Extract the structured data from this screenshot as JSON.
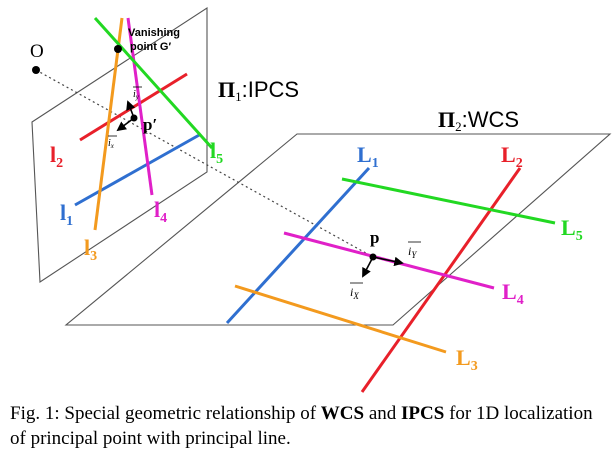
{
  "figure": {
    "plane1_label": "Π",
    "plane1_sub": "1",
    "plane1_name": ":IPCS",
    "plane2_label": "Π",
    "plane2_sub": "2",
    "plane2_name": ":WCS",
    "origin_label": "O",
    "vanishing_line1": "Vanishing",
    "vanishing_line2": "point G′",
    "pprime_label": "p′",
    "ix_small": "i",
    "ix_small_sub": "x",
    "iy_small": "i",
    "iy_small_sub": "y",
    "p_label": "p",
    "iX_label": "i",
    "iX_sub": "X",
    "iY_label": "i",
    "iY_sub": "Y",
    "image_lines": [
      {
        "name": "l",
        "sub": "1",
        "color": "#2f6fd0"
      },
      {
        "name": "l",
        "sub": "2",
        "color": "#e8202a"
      },
      {
        "name": "l",
        "sub": "3",
        "color": "#f39a1e"
      },
      {
        "name": "l",
        "sub": "4",
        "color": "#e020c8"
      },
      {
        "name": "l",
        "sub": "5",
        "color": "#22d822"
      }
    ],
    "world_lines": [
      {
        "name": "L",
        "sub": "1",
        "color": "#2f6fd0"
      },
      {
        "name": "L",
        "sub": "2",
        "color": "#e8202a"
      },
      {
        "name": "L",
        "sub": "3",
        "color": "#f39a1e"
      },
      {
        "name": "L",
        "sub": "4",
        "color": "#e020c8"
      },
      {
        "name": "L",
        "sub": "5",
        "color": "#22d822"
      }
    ]
  },
  "caption": {
    "prefix": "Fig. 1: Special geometric relationship of ",
    "bold1": "WCS",
    "mid": " and ",
    "bold2": "IPCS",
    "suffix": " for 1D localization of principal point with principal line."
  }
}
